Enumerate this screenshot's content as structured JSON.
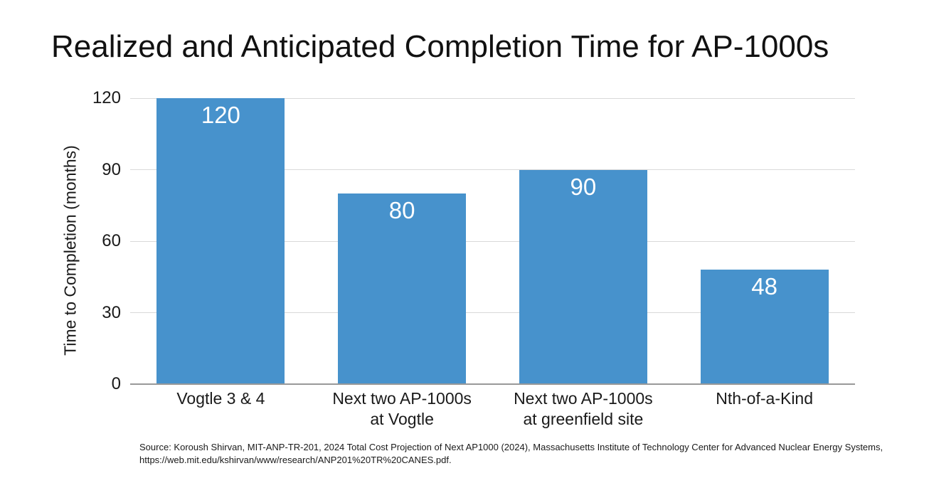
{
  "title": "Realized and Anticipated Completion Time for AP-1000s",
  "chart_data": {
    "type": "bar",
    "title": "Realized and Anticipated Completion Time for AP-1000s",
    "categories": [
      "Vogtle 3 & 4",
      "Next two AP-1000s at Vogtle",
      "Next two AP-1000s at greenfield site",
      "Nth-of-a-Kind"
    ],
    "category_lines": [
      [
        "Vogtle 3 & 4"
      ],
      [
        "Next two AP-1000s",
        "at Vogtle"
      ],
      [
        "Next two AP-1000s",
        "at greenfield site"
      ],
      [
        "Nth-of-a-Kind"
      ]
    ],
    "values": [
      120,
      80,
      90,
      48
    ],
    "data_labels": [
      "120",
      "80",
      "90",
      "48"
    ],
    "xlabel": "",
    "ylabel": "Time to Completion (months)",
    "yticks": [
      0,
      30,
      60,
      90,
      120
    ],
    "ylim": [
      0,
      120
    ],
    "grid": "horizontal",
    "legend": "none",
    "bar_color": "#4792CC",
    "value_label_color": "#FFFFFF"
  },
  "source": {
    "line1": "Source: Koroush Shirvan, MIT-ANP-TR-201, 2024 Total Cost Projection of Next AP1000 (2024), Massachusetts Institute of Technology Center for Advanced Nuclear Energy Systems,",
    "line2": "https://web.mit.edu/kshirvan/www/research/ANP201%20TR%20CANES.pdf."
  },
  "colors": {
    "background": "#FFFFFF",
    "title_text": "#111111",
    "axis_text": "#1A1A1A",
    "gridline": "#D9D9D9",
    "axis_line": "#999999",
    "bar": "#4792CC",
    "value_label": "#FFFFFF"
  }
}
